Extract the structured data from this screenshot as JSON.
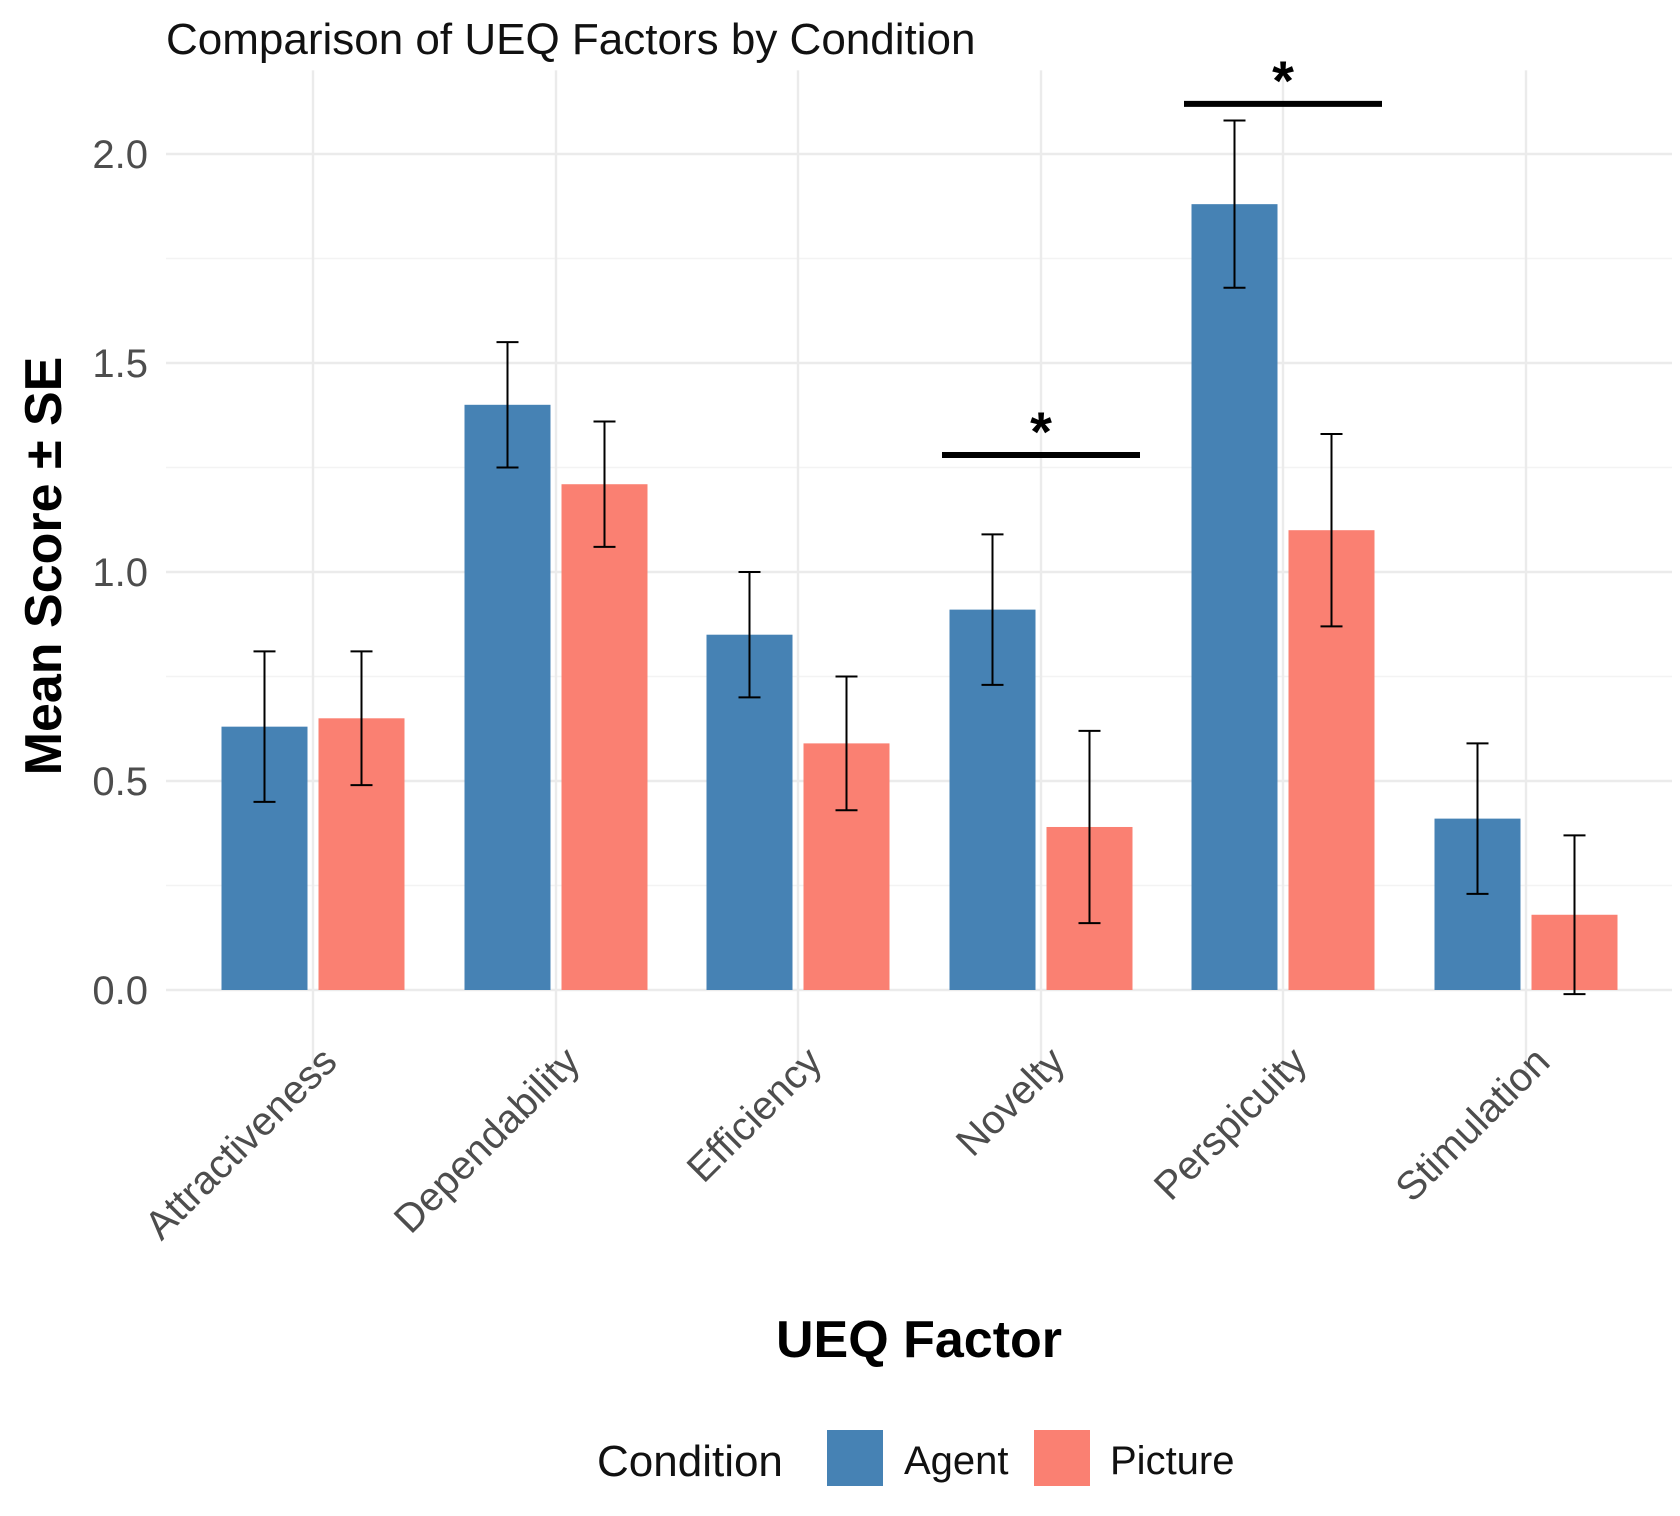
{
  "chart_data": {
    "type": "bar",
    "title": "Comparison of UEQ Factors by Condition",
    "xlabel": "UEQ Factor",
    "ylabel": "Mean Score ± SE",
    "categories": [
      "Attractiveness",
      "Dependability",
      "Efficiency",
      "Novelty",
      "Perspicuity",
      "Stimulation"
    ],
    "series": [
      {
        "name": "Agent",
        "color": "#4682B4",
        "values": [
          0.63,
          1.4,
          0.85,
          0.91,
          1.88,
          0.41
        ],
        "se": [
          0.18,
          0.15,
          0.15,
          0.18,
          0.2,
          0.18
        ]
      },
      {
        "name": "Picture",
        "color": "#FA8072",
        "values": [
          0.65,
          1.21,
          0.59,
          0.39,
          1.1,
          0.18
        ],
        "se": [
          0.16,
          0.15,
          0.16,
          0.23,
          0.23,
          0.19
        ]
      }
    ],
    "yticks": [
      "0.0",
      "0.5",
      "1.0",
      "1.5",
      "2.0"
    ],
    "ylim": [
      -0.1,
      2.2
    ],
    "grid": true,
    "legend": {
      "title": "Condition",
      "position": "bottom",
      "entries": [
        "Agent",
        "Picture"
      ]
    },
    "annotations": [
      {
        "label": "*",
        "category": "Novelty",
        "y": 1.28
      },
      {
        "label": "*",
        "category": "Perspicuity",
        "y": 2.12
      }
    ]
  }
}
